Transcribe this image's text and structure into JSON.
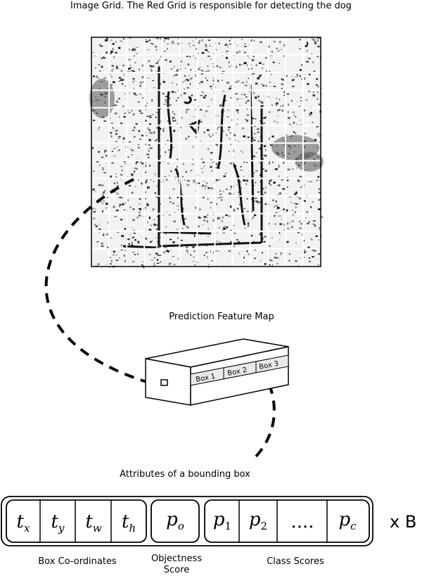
{
  "title": "Image Grid. The Red Grid is responsible for detecting the dog",
  "feature_map": {
    "label": "Prediction Feature Map",
    "boxes": [
      "Box 1",
      "Box 2",
      "Box 3"
    ]
  },
  "attributes": {
    "label": "Attributes of a bounding box",
    "multiplier": "x B",
    "groups": [
      {
        "caption": "Box Co-ordinates",
        "cells": [
          {
            "sym": "t",
            "sub": "x"
          },
          {
            "sym": "t",
            "sub": "y"
          },
          {
            "sym": "t",
            "sub": "w"
          },
          {
            "sym": "t",
            "sub": "h"
          }
        ]
      },
      {
        "caption": "Objectness\nScore",
        "cells": [
          {
            "sym": "p",
            "sub": "o"
          }
        ]
      },
      {
        "caption": "Class Scores",
        "cells": [
          {
            "sym": "p",
            "sub": "1"
          },
          {
            "sym": "p",
            "sub": "2"
          },
          {
            "sym": "....",
            "sub": ""
          },
          {
            "sym": "p",
            "sub": "c"
          }
        ]
      }
    ]
  },
  "colors": {
    "ink": "#000000",
    "grid_line": "#ffffff",
    "paper": "#ffffff"
  }
}
